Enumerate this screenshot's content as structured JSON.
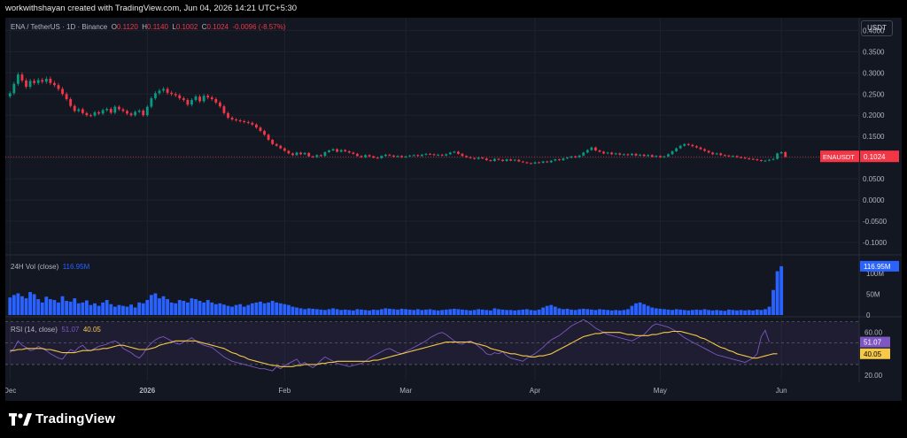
{
  "watermark": "workwithshayan created with TradingView.com, Jun 04, 2026 14:21 UTC+5:30",
  "brand": {
    "name": "TradingView"
  },
  "currency_button": "USDT",
  "price_legend": {
    "symbol": "ENA / TetherUS · 1D · Binance",
    "o_label": "O",
    "o": "0.1120",
    "h_label": "H",
    "h": "0.1140",
    "l_label": "L",
    "l": "0.1002",
    "c_label": "C",
    "c": "0.1024",
    "change": "-0.0096 (-8.57%)"
  },
  "price_tag": {
    "symbol": "ENAUSDT",
    "value": "0.1024",
    "color": "#f23645"
  },
  "volume_legend": {
    "label": "24H Vol (close)",
    "value": "116.95M"
  },
  "volume_tag": "116.95M",
  "rsi_legend": {
    "label": "RSI (14, close)",
    "rsi": "51.07",
    "ma": "40.05"
  },
  "rsi_tags": {
    "rsi": "51.07",
    "ma": "40.05"
  },
  "colors": {
    "up": "#089981",
    "down": "#f23645",
    "volume": "#2962ff",
    "rsi": "#7e57c2",
    "rsi_ma": "#f7c948",
    "bg": "#131722"
  },
  "chart_data": [
    {
      "type": "candlestick",
      "name": "price",
      "y_ticks": [
        "0.4000",
        "0.3500",
        "0.3000",
        "0.2500",
        "0.2000",
        "0.1500",
        "0.1000",
        "0.0500",
        "0.0000",
        "-0.0500",
        "-0.1000"
      ],
      "ylim": [
        -0.125,
        0.43
      ],
      "x_labels": [
        "Dec",
        "2026",
        "Feb",
        "Mar",
        "Apr",
        "May",
        "Jun"
      ],
      "x_label_index": [
        0,
        34,
        68,
        98,
        130,
        161,
        191
      ],
      "close": [
        0.252,
        0.274,
        0.296,
        0.282,
        0.267,
        0.281,
        0.276,
        0.283,
        0.279,
        0.286,
        0.276,
        0.271,
        0.262,
        0.25,
        0.238,
        0.222,
        0.21,
        0.214,
        0.205,
        0.2,
        0.199,
        0.207,
        0.204,
        0.212,
        0.215,
        0.206,
        0.22,
        0.214,
        0.21,
        0.204,
        0.2,
        0.208,
        0.211,
        0.2,
        0.22,
        0.24,
        0.252,
        0.258,
        0.262,
        0.253,
        0.25,
        0.247,
        0.24,
        0.236,
        0.225,
        0.236,
        0.244,
        0.233,
        0.246,
        0.242,
        0.238,
        0.23,
        0.221,
        0.205,
        0.194,
        0.19,
        0.188,
        0.186,
        0.184,
        0.182,
        0.178,
        0.171,
        0.163,
        0.154,
        0.142,
        0.132,
        0.128,
        0.122,
        0.116,
        0.11,
        0.106,
        0.112,
        0.108,
        0.111,
        0.103,
        0.101,
        0.106,
        0.104,
        0.113,
        0.117,
        0.12,
        0.114,
        0.118,
        0.115,
        0.112,
        0.109,
        0.104,
        0.101,
        0.106,
        0.103,
        0.1,
        0.099,
        0.104,
        0.107,
        0.105,
        0.102,
        0.104,
        0.101,
        0.103,
        0.105,
        0.106,
        0.104,
        0.107,
        0.109,
        0.108,
        0.106,
        0.107,
        0.105,
        0.108,
        0.112,
        0.114,
        0.109,
        0.104,
        0.101,
        0.099,
        0.097,
        0.1,
        0.098,
        0.094,
        0.092,
        0.097,
        0.095,
        0.092,
        0.096,
        0.093,
        0.095,
        0.091,
        0.089,
        0.087,
        0.086,
        0.089,
        0.088,
        0.091,
        0.089,
        0.093,
        0.096,
        0.094,
        0.098,
        0.1,
        0.103,
        0.101,
        0.105,
        0.112,
        0.118,
        0.124,
        0.117,
        0.114,
        0.11,
        0.112,
        0.108,
        0.11,
        0.107,
        0.108,
        0.106,
        0.109,
        0.105,
        0.107,
        0.104,
        0.106,
        0.102,
        0.104,
        0.101,
        0.103,
        0.108,
        0.115,
        0.122,
        0.128,
        0.132,
        0.13,
        0.127,
        0.124,
        0.12,
        0.116,
        0.112,
        0.108,
        0.11,
        0.106,
        0.105,
        0.103,
        0.104,
        0.101,
        0.1,
        0.098,
        0.097,
        0.096,
        0.094,
        0.092,
        0.093,
        0.095,
        0.097,
        0.11,
        0.113,
        0.102
      ]
    },
    {
      "type": "bar",
      "name": "24H Vol (close)",
      "y_ticks": [
        "100M",
        "50M",
        "0"
      ],
      "ylim": [
        0,
        140
      ],
      "values": [
        42,
        48,
        52,
        45,
        40,
        55,
        50,
        38,
        30,
        44,
        38,
        36,
        30,
        45,
        34,
        32,
        40,
        28,
        30,
        35,
        24,
        28,
        22,
        30,
        36,
        26,
        20,
        24,
        22,
        20,
        25,
        18,
        30,
        28,
        36,
        48,
        52,
        40,
        45,
        38,
        30,
        28,
        36,
        34,
        30,
        40,
        38,
        34,
        30,
        36,
        30,
        26,
        28,
        25,
        22,
        20,
        24,
        26,
        20,
        24,
        28,
        30,
        32,
        28,
        30,
        34,
        30,
        28,
        26,
        24,
        20,
        18,
        16,
        14,
        16,
        15,
        14,
        13,
        12,
        14,
        16,
        14,
        12,
        13,
        12,
        11,
        14,
        13,
        12,
        11,
        13,
        12,
        14,
        16,
        15,
        14,
        13,
        15,
        14,
        13,
        12,
        14,
        12,
        13,
        14,
        12,
        11,
        12,
        13,
        14,
        15,
        14,
        13,
        12,
        11,
        12,
        14,
        13,
        12,
        11,
        16,
        14,
        13,
        12,
        12,
        11,
        12,
        13,
        14,
        12,
        11,
        13,
        18,
        22,
        24,
        20,
        16,
        14,
        15,
        13,
        12,
        14,
        15,
        14,
        13,
        12,
        14,
        13,
        12,
        11,
        12,
        11,
        12,
        14,
        22,
        28,
        30,
        26,
        22,
        18,
        16,
        15,
        14,
        13,
        12,
        14,
        13,
        12,
        11,
        12,
        13,
        12,
        14,
        12,
        11,
        12,
        11,
        10,
        13,
        12,
        11,
        12,
        11,
        12,
        11,
        13,
        12,
        14,
        20,
        60,
        105,
        116.95
      ]
    },
    {
      "type": "line",
      "name": "RSI (14, close)",
      "y_ticks": [
        "60.00",
        "20.00"
      ],
      "ylim": [
        15,
        73
      ],
      "bands": [
        30,
        50,
        70
      ],
      "series": [
        {
          "name": "RSI",
          "values": [
            41,
            45,
            52,
            48,
            46,
            43,
            44,
            47,
            45,
            43,
            40,
            38,
            36,
            35,
            40,
            44,
            42,
            46,
            48,
            44,
            43,
            45,
            47,
            48,
            49,
            51,
            52,
            50,
            45,
            43,
            41,
            38,
            36,
            40,
            46,
            50,
            53,
            55,
            56,
            54,
            52,
            50,
            49,
            51,
            53,
            55,
            52,
            50,
            48,
            47,
            46,
            43,
            40,
            37,
            35,
            33,
            32,
            31,
            30,
            29,
            28,
            27,
            26,
            26,
            25,
            24,
            28,
            26,
            29,
            31,
            33,
            35,
            30,
            32,
            29,
            27,
            30,
            34,
            37,
            35,
            33,
            31,
            30,
            29,
            28,
            29,
            30,
            31,
            33,
            36,
            38,
            40,
            42,
            44,
            45,
            43,
            41,
            40,
            42,
            44,
            46,
            48,
            50,
            52,
            55,
            57,
            59,
            60,
            58,
            55,
            52,
            50,
            49,
            51,
            52,
            50,
            47,
            44,
            40,
            39,
            41,
            40,
            42,
            38,
            36,
            35,
            34,
            33,
            36,
            38,
            40,
            43,
            46,
            50,
            53,
            55,
            57,
            60,
            63,
            66,
            68,
            70,
            72,
            70,
            67,
            64,
            62,
            60,
            58,
            57,
            56,
            55,
            54,
            53,
            52,
            54,
            56,
            58,
            62,
            66,
            68,
            67,
            66,
            65,
            63,
            61,
            58,
            55,
            53,
            51,
            49,
            47,
            45,
            43,
            41,
            39,
            38,
            37,
            36,
            35,
            34,
            33,
            32,
            34,
            36,
            40,
            56,
            62,
            51
          ]
        },
        {
          "name": "MA",
          "values": [
            43,
            43,
            44,
            44,
            45,
            45,
            45,
            45,
            45,
            44,
            44,
            43,
            42,
            41,
            41,
            41,
            41,
            42,
            43,
            43,
            43,
            44,
            44,
            45,
            45,
            46,
            47,
            48,
            48,
            47,
            46,
            45,
            44,
            44,
            44,
            45,
            46,
            48,
            49,
            50,
            51,
            52,
            52,
            52,
            52,
            52,
            52,
            51,
            50,
            49,
            48,
            47,
            46,
            45,
            43,
            41,
            40,
            38,
            37,
            35,
            34,
            33,
            32,
            31,
            30,
            29,
            29,
            28,
            28,
            28,
            28,
            29,
            29,
            30,
            30,
            30,
            30,
            31,
            31,
            32,
            32,
            33,
            33,
            33,
            33,
            33,
            33,
            33,
            33,
            33,
            34,
            34,
            35,
            36,
            37,
            38,
            39,
            40,
            41,
            42,
            43,
            44,
            45,
            46,
            47,
            48,
            49,
            50,
            51,
            51,
            51,
            51,
            51,
            51,
            51,
            50,
            49,
            48,
            47,
            45,
            44,
            43,
            42,
            41,
            40,
            40,
            39,
            38,
            38,
            37,
            37,
            38,
            38,
            39,
            40,
            42,
            44,
            46,
            48,
            50,
            52,
            54,
            56,
            57,
            58,
            59,
            59,
            60,
            60,
            60,
            60,
            60,
            59,
            58,
            58,
            57,
            57,
            57,
            57,
            58,
            58,
            59,
            60,
            60,
            61,
            61,
            61,
            60,
            59,
            58,
            57,
            55,
            54,
            52,
            50,
            48,
            46,
            45,
            43,
            42,
            40,
            39,
            38,
            37,
            36,
            36,
            37,
            38,
            39,
            40,
            40.05
          ]
        }
      ]
    }
  ]
}
